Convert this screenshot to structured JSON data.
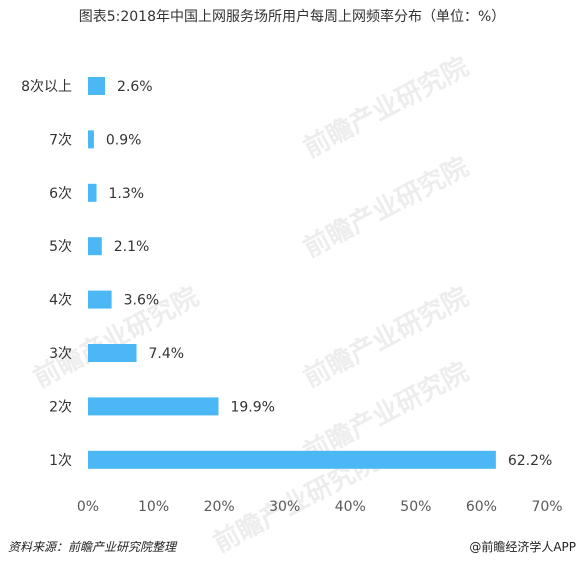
{
  "chart_data": {
    "type": "bar",
    "orientation": "horizontal",
    "title": "图表5:2018年中国上网服务场所用户每周上网频率分布（单位：%）",
    "categories": [
      "8次以上",
      "7次",
      "6次",
      "5次",
      "4次",
      "3次",
      "2次",
      "1次"
    ],
    "values": [
      2.6,
      0.9,
      1.3,
      2.1,
      3.6,
      7.4,
      19.9,
      62.2
    ],
    "value_labels": [
      "2.6%",
      "0.9%",
      "1.3%",
      "2.1%",
      "3.6%",
      "7.4%",
      "19.9%",
      "62.2%"
    ],
    "xlim": [
      0,
      70
    ],
    "xticks": [
      "0%",
      "10%",
      "20%",
      "30%",
      "40%",
      "50%",
      "60%",
      "70%"
    ],
    "grid": false,
    "legend": "none",
    "bar_color": "#4bb8f5"
  },
  "watermark": "前瞻产业研究院",
  "footer": {
    "source": "资料来源：前瞻产业研究院整理",
    "credit": "@前瞻经济学人APP"
  }
}
